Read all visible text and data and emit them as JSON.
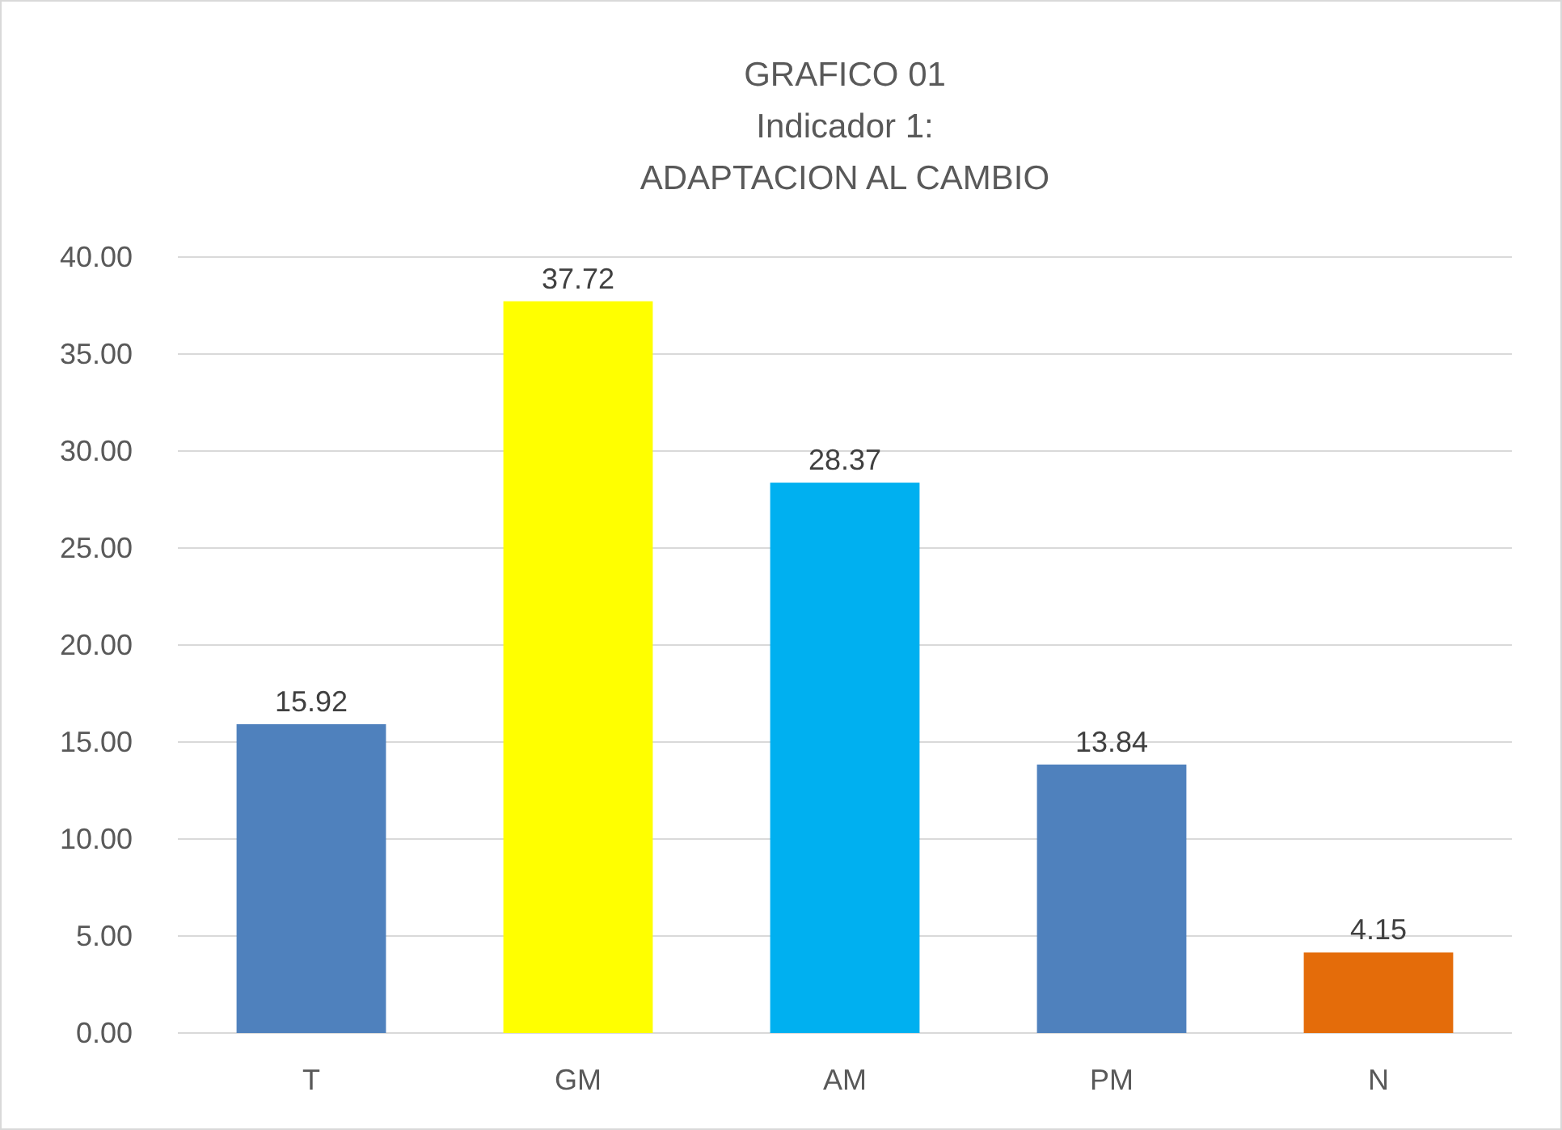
{
  "chart_data": {
    "type": "bar",
    "title": "GRAFICO 01\nIndicador 1:\nADAPTACION AL CAMBIO",
    "categories": [
      "T",
      "GM",
      "AM",
      "PM",
      "N"
    ],
    "values": [
      15.92,
      37.72,
      28.37,
      13.84,
      4.15
    ],
    "colors": [
      "#4f81bd",
      "#ffff00",
      "#00b0f0",
      "#4f81bd",
      "#e46c0a"
    ],
    "ylim": [
      0,
      40
    ],
    "yticks": [
      {
        "value": 0,
        "label": "0.00"
      },
      {
        "value": 5,
        "label": "5.00"
      },
      {
        "value": 10,
        "label": "10.00"
      },
      {
        "value": 15,
        "label": "15.00"
      },
      {
        "value": 20,
        "label": "20.00"
      },
      {
        "value": 25,
        "label": "25.00"
      },
      {
        "value": 30,
        "label": "30.00"
      },
      {
        "value": 35,
        "label": "35.00"
      },
      {
        "value": 40,
        "label": "40.00"
      }
    ],
    "grid": "y",
    "data_labels": true
  }
}
